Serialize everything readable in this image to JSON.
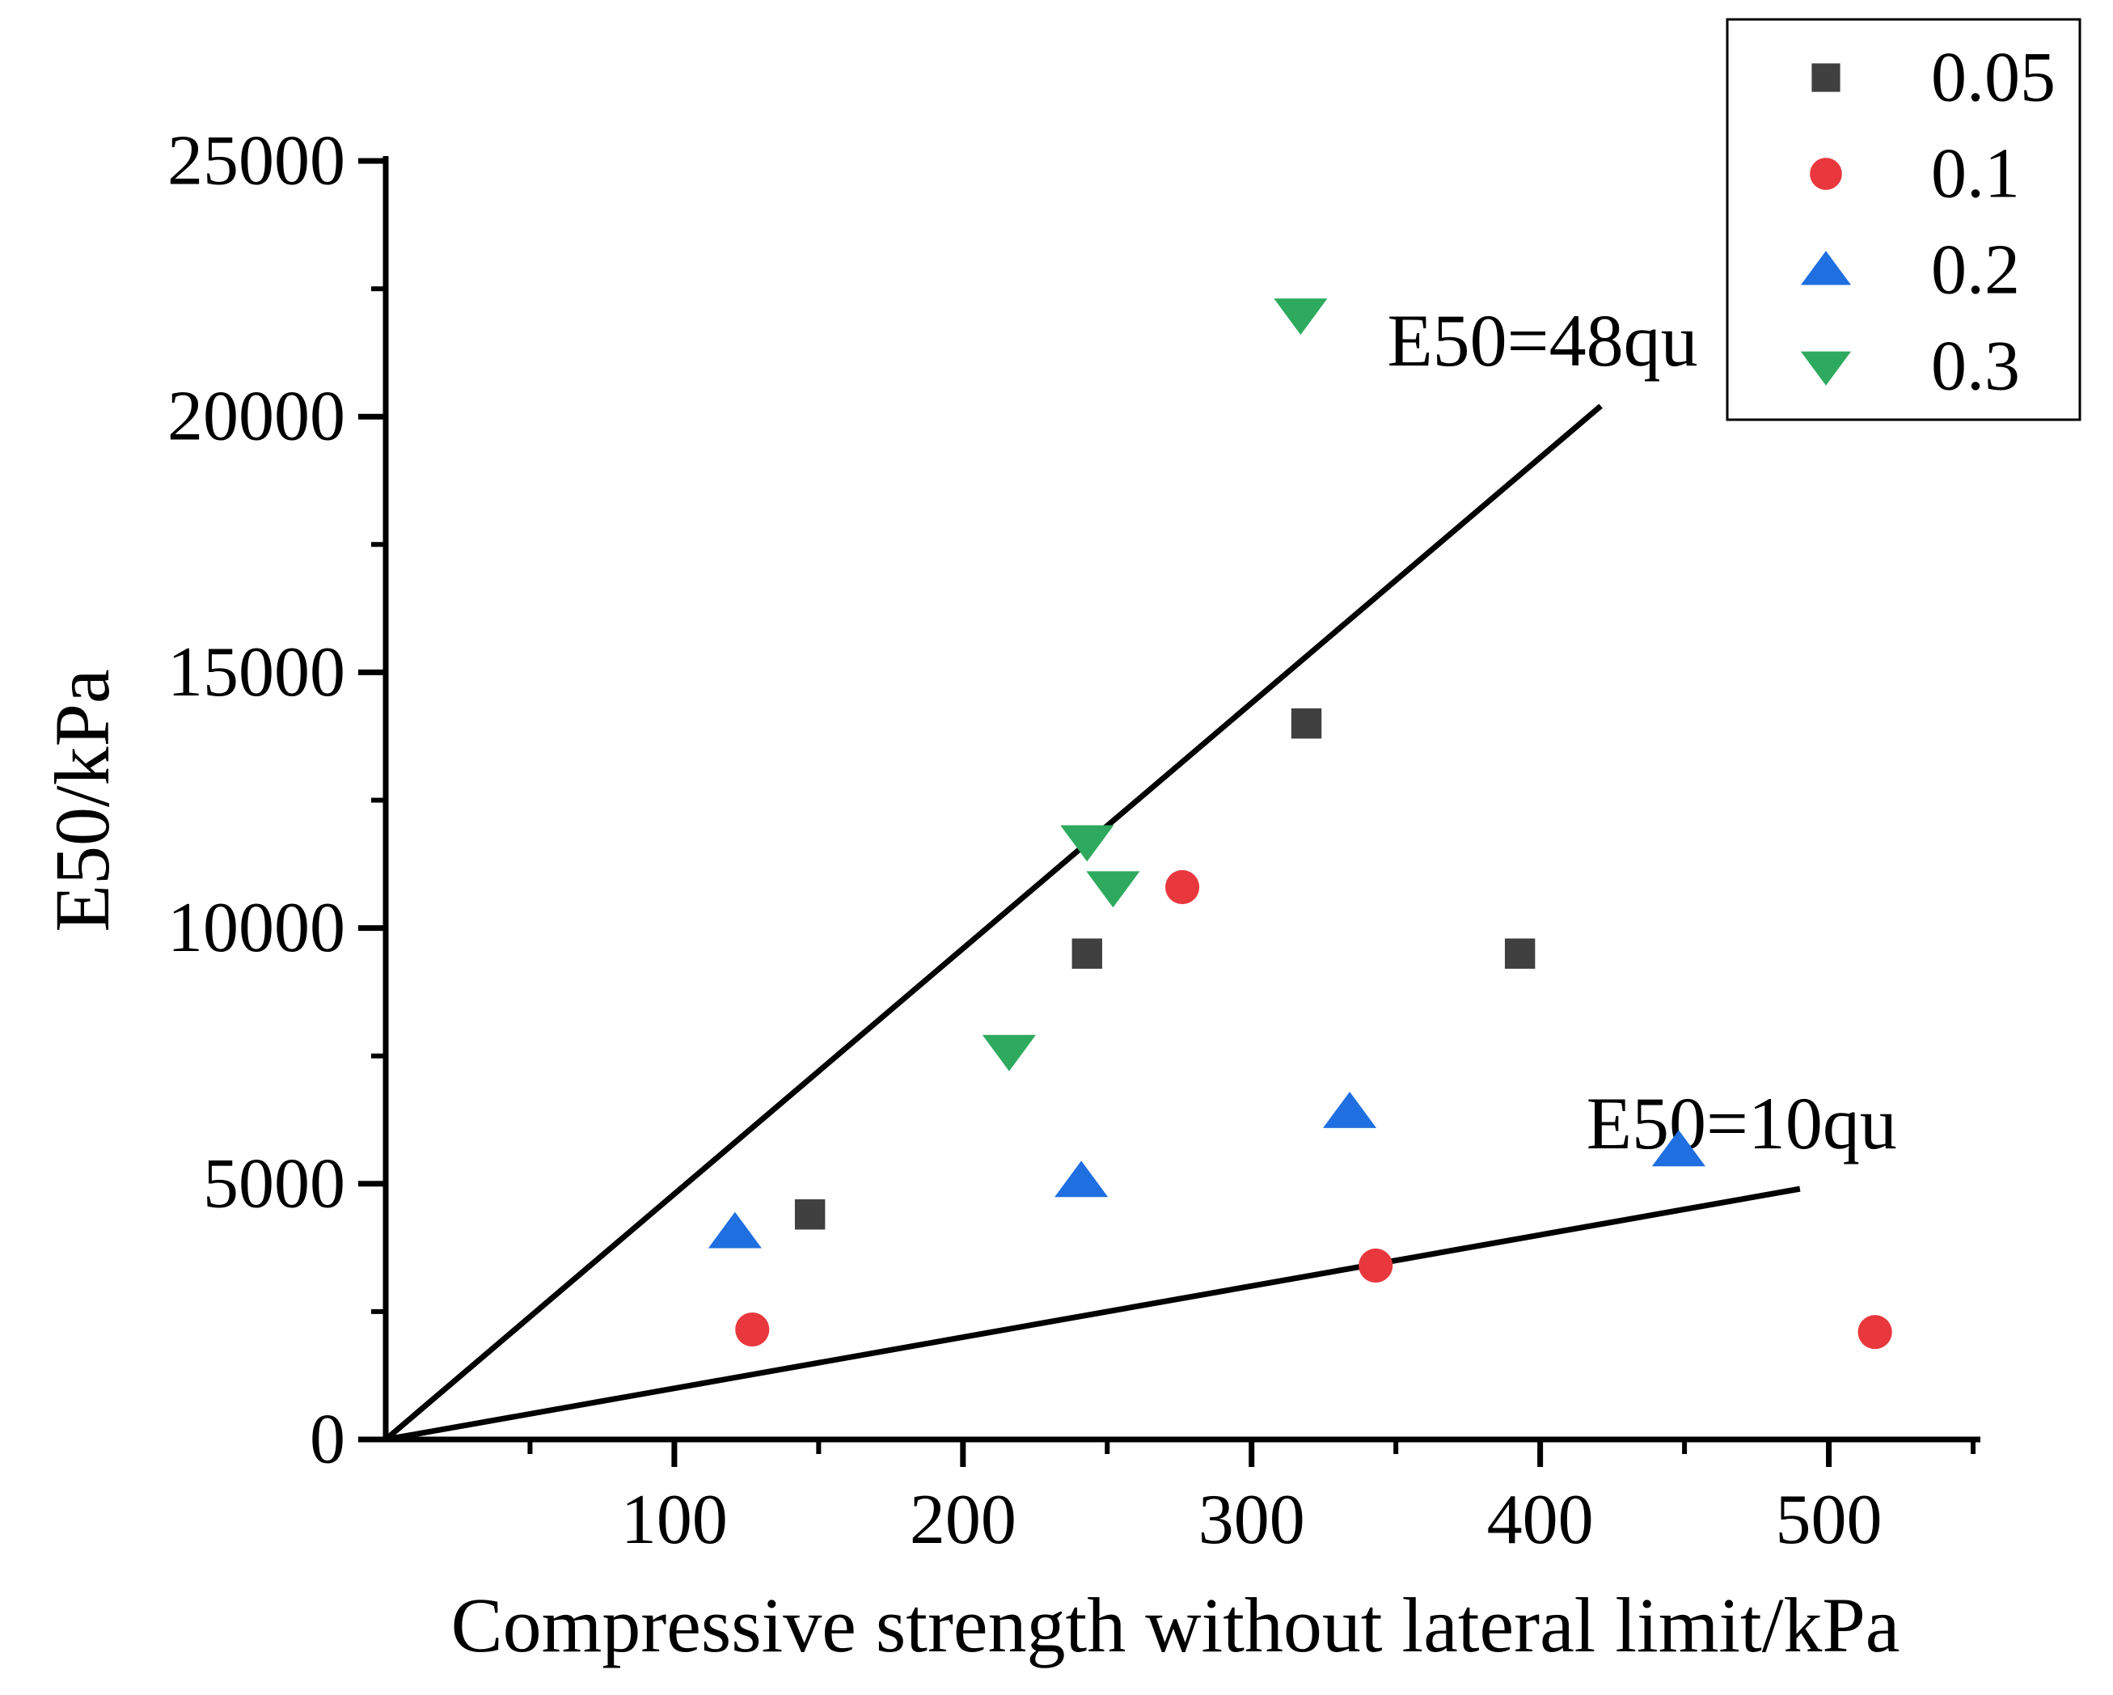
{
  "chart_data": {
    "type": "scatter",
    "title": "",
    "xlabel": "Compressive strength without lateral limit/kPa",
    "ylabel": "E50/kPa",
    "xlim": [
      0,
      550
    ],
    "ylim": [
      0,
      25000
    ],
    "x_ticks": [
      100,
      200,
      300,
      400,
      500
    ],
    "x_tick_labels": [
      "100",
      "200",
      "300",
      "400",
      "500"
    ],
    "x_minor_ticks": [
      50,
      150,
      250,
      350,
      450,
      550
    ],
    "y_ticks": [
      0,
      5000,
      10000,
      15000,
      20000,
      25000
    ],
    "y_tick_labels": [
      "0",
      "5000",
      "10000",
      "15000",
      "20000",
      "25000"
    ],
    "y_minor_ticks": [
      2500,
      7500,
      12500,
      17500,
      22500
    ],
    "grid": false,
    "legend_position": "top-right",
    "series": [
      {
        "name": "0.05",
        "marker": "square",
        "color": "#404040",
        "points": [
          [
            147,
            4400
          ],
          [
            243,
            9500
          ],
          [
            319,
            14000
          ],
          [
            393,
            9500
          ]
        ]
      },
      {
        "name": "0.1",
        "marker": "circle",
        "color": "#e8383d",
        "points": [
          [
            127,
            2150
          ],
          [
            276,
            10800
          ],
          [
            343,
            3400
          ],
          [
            516,
            2100
          ]
        ]
      },
      {
        "name": "0.2",
        "marker": "triangle-up",
        "color": "#1f6fe0",
        "points": [
          [
            121,
            4050
          ],
          [
            241,
            5050
          ],
          [
            334,
            6400
          ],
          [
            448,
            5650
          ]
        ]
      },
      {
        "name": "0.3",
        "marker": "triangle-down",
        "color": "#2eaa5e",
        "points": [
          [
            216,
            7600
          ],
          [
            243,
            11700
          ],
          [
            252,
            10800
          ],
          [
            317,
            22000
          ]
        ]
      }
    ],
    "reference_lines": [
      {
        "label": "E50=48qu",
        "slope": 48,
        "x_range": [
          0,
          421
        ]
      },
      {
        "label": "E50=10qu",
        "slope": 10,
        "x_range": [
          0,
          490
        ]
      }
    ]
  }
}
